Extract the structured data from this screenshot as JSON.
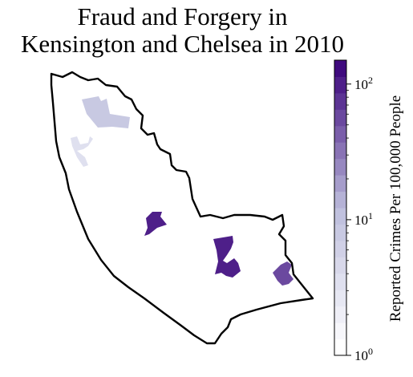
{
  "title": {
    "line1": "Fraud and Forgery in",
    "line2": "Kensington and Chelsea in 2010"
  },
  "colorbar": {
    "label": "Reported Crimes Per 100,000 People",
    "scale": "log",
    "min": 1,
    "max": 150,
    "levels": 18,
    "color_low": "#ffffff",
    "color_high": "#3f0a7e",
    "ticks": [
      {
        "value": 1,
        "base": "10",
        "exp": "0"
      },
      {
        "value": 10,
        "base": "10",
        "exp": "1"
      },
      {
        "value": 100,
        "base": "10",
        "exp": "2"
      }
    ]
  },
  "map": {
    "border_color": "#000000",
    "areas": [
      {
        "id": "north-west-area",
        "value": 9
      },
      {
        "id": "west-area",
        "value": 4
      },
      {
        "id": "central-area",
        "value": 100
      },
      {
        "id": "south-central-area",
        "value": 100
      },
      {
        "id": "south-east-area",
        "value": 55
      }
    ]
  }
}
